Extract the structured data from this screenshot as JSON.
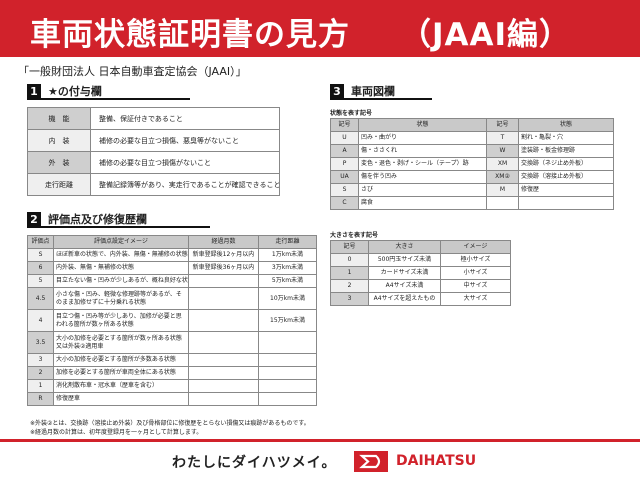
{
  "banner": {
    "title": "車両状態証明書の見方",
    "subtitle": "（JAAI編）"
  },
  "org": "「一般財団法人 日本自動車査定協会（JAAI）」",
  "section1": {
    "num": "1",
    "title": "★の付与欄",
    "rows": [
      {
        "k": "機　能",
        "v": "整備、保証付きであること"
      },
      {
        "k": "内　装",
        "v": "補修の必要な目立つ損傷、悪臭等がないこと"
      },
      {
        "k": "外　装",
        "v": "補修の必要な目立つ損傷がないこと"
      },
      {
        "k": "走行距離",
        "v": "整備記録簿等があり、実走行であることが確認できること"
      }
    ]
  },
  "section2": {
    "num": "2",
    "title": "評価点及び修復歴欄",
    "headers": [
      "評価点",
      "評価点設定イメージ",
      "経過月数",
      "走行距離"
    ],
    "rows": [
      [
        "S",
        "ほぼ新車の状態で、内外装、無傷・無補修の状態",
        "新車登録後12ヶ月以内",
        "1万km未満"
      ],
      [
        "6",
        "内外装、無傷・無補修の状態",
        "新車登録後36ヶ月以内",
        "3万km未満"
      ],
      [
        "5",
        "目立たない傷・凹みが少しあるが、概ね良好な状態",
        "",
        "5万km未満"
      ],
      [
        "4.5",
        "小さな傷・凹み、軽微な修理跡等があるが、そのまま加修せずに十分乗れる状態",
        "",
        "10万km未満"
      ],
      [
        "4",
        "目立つ傷・凹み等が少しあり、加修が必要と思われる箇所が数ヶ所ある状態",
        "",
        "15万km未満"
      ],
      [
        "3.5",
        "大小の加修を必要とする箇所が数ヶ所ある状態又は外装②適用車",
        "",
        ""
      ],
      [
        "3",
        "大小の加修を必要とする箇所が多数ある状態",
        "",
        ""
      ],
      [
        "2",
        "加修を必要とする箇所が車両全体にある状態",
        "",
        ""
      ],
      [
        "1",
        "消化剤散布車・冠水車（歴車を含む）",
        "",
        ""
      ],
      [
        "R",
        "修復歴車",
        "",
        ""
      ]
    ],
    "notes": [
      "※外装②とは、交換跡（溶接止め外装）及び骨格部位に修復歴をとらない損傷又は痕跡があるものです。",
      "※経過月数の計算は、初年度登録月を一ヶ月として計算します。"
    ]
  },
  "section3": {
    "num": "3",
    "title": "車両図欄",
    "cond_label": "状態を表す記号",
    "cond_headers": [
      "記号",
      "状態",
      "記号",
      "状態"
    ],
    "cond_rows": [
      [
        "U",
        "凹み・曲がり",
        "T",
        "割れ・亀裂・穴"
      ],
      [
        "A",
        "傷・ささくれ",
        "W",
        "塗装跡・板金修理跡"
      ],
      [
        "P",
        "変色・退色・剥げ・シール（テープ）跡",
        "XM",
        "交換跡（ネジ止め外板）"
      ],
      [
        "UA",
        "傷を伴う凹み",
        "XM②",
        "交換跡（溶接止め外板）"
      ],
      [
        "S",
        "さび",
        "M",
        "修復歴"
      ],
      [
        "C",
        "腐食",
        "",
        ""
      ]
    ],
    "size_label": "大きさを表す記号",
    "size_headers": [
      "記号",
      "大きさ",
      "イメージ"
    ],
    "size_rows": [
      [
        "0",
        "500円玉サイズ未満",
        "極小サイズ"
      ],
      [
        "1",
        "カードサイズ未満",
        "小サイズ"
      ],
      [
        "2",
        "A4サイズ未満",
        "中サイズ"
      ],
      [
        "3",
        "A4サイズを超えたもの",
        "大サイズ"
      ]
    ]
  },
  "footer": {
    "slogan": "わたしにダイハツメイ。",
    "brand": "DAIHATSU",
    "accent": "#d1222b"
  }
}
